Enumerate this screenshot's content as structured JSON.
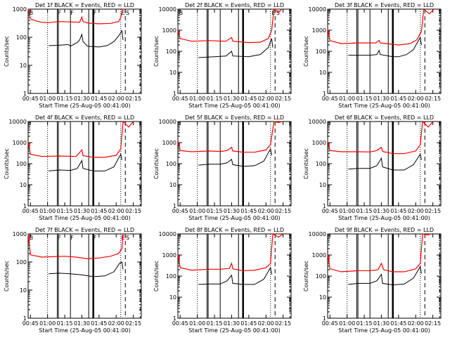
{
  "chart_data": {
    "type": "line",
    "layout": "3x3 grid",
    "xlabel": "Start Time (25-Aug-05 00:41:00)",
    "ylabel": "Counts/sec",
    "xscale_units": "minutes after 00:00",
    "xlim": [
      43,
      142
    ],
    "xticks": [
      45,
      60,
      75,
      90,
      105,
      120,
      135
    ],
    "xtick_labels": [
      "00:45",
      "01:00",
      "01:15",
      "01:30",
      "01:45",
      "02:00",
      "02:15"
    ],
    "yscale": "log",
    "legend": "in title: BLACK = Events, RED = LLD",
    "series_colors": {
      "events": "#000000",
      "lld": "#ff0000"
    },
    "vlines": [
      {
        "t": 60,
        "style": "dotted"
      },
      {
        "t": 68.5,
        "style": "solid"
      },
      {
        "t": 69.5,
        "style": "solid"
      },
      {
        "t": 80,
        "style": "solid"
      },
      {
        "t": 96,
        "style": "solid"
      },
      {
        "t": 100,
        "style": "thick"
      },
      {
        "t": 124,
        "style": "dotted"
      },
      {
        "t": 128,
        "style": "dashed"
      },
      {
        "t": 141,
        "style": "dashdot"
      }
    ],
    "panels": [
      {
        "title": "Det 1f BLACK = Events, RED = LLD",
        "ylim": [
          1,
          1000
        ],
        "yticks": [
          "1",
          "10",
          "100",
          "1000"
        ],
        "markers": [
          {
            "t": 44,
            "label": "B"
          },
          {
            "t": 69,
            "label": "F"
          },
          {
            "t": 80,
            "label": "F"
          },
          {
            "t": 100,
            "label": "F"
          },
          {
            "t": 124.5,
            "label": "E"
          },
          {
            "t": 128.5,
            "label": "S"
          }
        ],
        "lld": [
          [
            43,
            1000
          ],
          [
            45,
            450
          ],
          [
            50,
            380
          ],
          [
            55,
            340
          ],
          [
            60,
            330
          ],
          [
            70,
            360
          ],
          [
            80,
            350
          ],
          [
            88,
            340
          ],
          [
            90,
            520
          ],
          [
            91,
            360
          ],
          [
            95,
            320
          ],
          [
            105,
            300
          ],
          [
            115,
            310
          ],
          [
            122,
            360
          ],
          [
            124,
            500
          ],
          [
            125.5,
            1000
          ]
        ],
        "events": [
          [
            61,
            50
          ],
          [
            70,
            52
          ],
          [
            78,
            55
          ],
          [
            80,
            48
          ],
          [
            86,
            65
          ],
          [
            88,
            80
          ],
          [
            90,
            125
          ],
          [
            91,
            70
          ],
          [
            95,
            48
          ],
          [
            105,
            45
          ],
          [
            112,
            50
          ],
          [
            118,
            70
          ],
          [
            122,
            110
          ],
          [
            125,
            170
          ],
          [
            126,
            80
          ]
        ]
      },
      {
        "title": "Det 2f BLACK = Events, RED = LLD",
        "ylim": [
          1,
          10000
        ],
        "yticks": [
          "1",
          "10",
          "100",
          "1000",
          "10000"
        ],
        "markers": [
          {
            "t": 44,
            "label": "B"
          },
          {
            "t": 125,
            "label": "E"
          },
          {
            "t": 129,
            "label": "S"
          }
        ],
        "lld": [
          [
            43,
            1000
          ],
          [
            45,
            400
          ],
          [
            55,
            300
          ],
          [
            70,
            320
          ],
          [
            85,
            300
          ],
          [
            90,
            450
          ],
          [
            91,
            300
          ],
          [
            105,
            260
          ],
          [
            115,
            270
          ],
          [
            122,
            400
          ],
          [
            125,
            1000
          ],
          [
            127,
            10000
          ],
          [
            131,
            7000
          ],
          [
            134,
            10000
          ]
        ],
        "events": [
          [
            61,
            50
          ],
          [
            75,
            55
          ],
          [
            85,
            60
          ],
          [
            90,
            100
          ],
          [
            91,
            60
          ],
          [
            105,
            55
          ],
          [
            115,
            70
          ],
          [
            122,
            150
          ],
          [
            125,
            400
          ],
          [
            126,
            150
          ]
        ]
      },
      {
        "title": "Det 3f BLACK = Events, RED = LLD",
        "ylim": [
          1,
          10000
        ],
        "yticks": [
          "1",
          "10",
          "100",
          "1000",
          "10000"
        ],
        "markers": [],
        "lld": [
          [
            43,
            1200
          ],
          [
            45,
            320
          ],
          [
            55,
            230
          ],
          [
            70,
            250
          ],
          [
            85,
            250
          ],
          [
            88,
            330
          ],
          [
            89,
            250
          ],
          [
            95,
            230
          ],
          [
            105,
            200
          ],
          [
            115,
            230
          ],
          [
            121,
            350
          ],
          [
            125,
            900
          ],
          [
            127,
            10000
          ],
          [
            132,
            6000
          ],
          [
            136,
            10000
          ]
        ],
        "events": [
          [
            61,
            65
          ],
          [
            70,
            65
          ],
          [
            80,
            65
          ],
          [
            86,
            70
          ],
          [
            88,
            110
          ],
          [
            89,
            70
          ],
          [
            100,
            55
          ],
          [
            105,
            55
          ],
          [
            112,
            70
          ],
          [
            118,
            120
          ],
          [
            122,
            300
          ],
          [
            124,
            450
          ],
          [
            125,
            200
          ]
        ]
      },
      {
        "title": "Det 4f BLACK = Events, RED = LLD",
        "ylim": [
          1,
          10000
        ],
        "yticks": [
          "1",
          "10",
          "100",
          "1000",
          "10000"
        ],
        "markers": [],
        "lld": [
          [
            43,
            1000
          ],
          [
            45,
            280
          ],
          [
            55,
            220
          ],
          [
            70,
            230
          ],
          [
            85,
            220
          ],
          [
            90,
            450
          ],
          [
            91,
            240
          ],
          [
            100,
            200
          ],
          [
            110,
            200
          ],
          [
            120,
            250
          ],
          [
            124,
            500
          ],
          [
            126,
            10000
          ],
          [
            131,
            5500
          ],
          [
            135,
            10000
          ]
        ],
        "events": [
          [
            61,
            45
          ],
          [
            70,
            50
          ],
          [
            80,
            48
          ],
          [
            86,
            60
          ],
          [
            90,
            140
          ],
          [
            91,
            60
          ],
          [
            100,
            45
          ],
          [
            110,
            45
          ],
          [
            118,
            70
          ],
          [
            124,
            280
          ],
          [
            125,
            150
          ]
        ]
      },
      {
        "title": "Det 5f BLACK = Events, RED = LLD",
        "ylim": [
          1,
          10000
        ],
        "yticks": [
          "1",
          "10",
          "100",
          "1000",
          "10000"
        ],
        "markers": [],
        "lld": [
          [
            43,
            1300
          ],
          [
            45,
            420
          ],
          [
            55,
            370
          ],
          [
            70,
            400
          ],
          [
            80,
            380
          ],
          [
            86,
            420
          ],
          [
            90,
            600
          ],
          [
            91,
            400
          ],
          [
            100,
            350
          ],
          [
            110,
            350
          ],
          [
            120,
            450
          ],
          [
            124,
            800
          ],
          [
            127,
            10000
          ],
          [
            131,
            9000
          ],
          [
            134,
            10000
          ]
        ],
        "events": [
          [
            61,
            85
          ],
          [
            70,
            95
          ],
          [
            80,
            95
          ],
          [
            86,
            110
          ],
          [
            90,
            160
          ],
          [
            91,
            90
          ],
          [
            100,
            75
          ],
          [
            110,
            80
          ],
          [
            118,
            130
          ],
          [
            124,
            500
          ],
          [
            125,
            250
          ]
        ]
      },
      {
        "title": "Det 6f BLACK = Events, RED = LLD",
        "ylim": [
          1,
          10000
        ],
        "yticks": [
          "1",
          "10",
          "100",
          "1000",
          "10000"
        ],
        "markers": [],
        "lld": [
          [
            43,
            1200
          ],
          [
            45,
            420
          ],
          [
            55,
            370
          ],
          [
            70,
            370
          ],
          [
            80,
            360
          ],
          [
            86,
            420
          ],
          [
            90,
            600
          ],
          [
            91,
            380
          ],
          [
            100,
            300
          ],
          [
            110,
            300
          ],
          [
            120,
            400
          ],
          [
            124,
            800
          ],
          [
            126,
            10000
          ],
          [
            131,
            5500
          ],
          [
            135,
            10000
          ]
        ],
        "events": [
          [
            61,
            55
          ],
          [
            70,
            60
          ],
          [
            80,
            60
          ],
          [
            86,
            80
          ],
          [
            90,
            180
          ],
          [
            91,
            70
          ],
          [
            100,
            50
          ],
          [
            110,
            50
          ],
          [
            118,
            90
          ],
          [
            124,
            280
          ],
          [
            125,
            150
          ]
        ]
      },
      {
        "title": "Det 7f BLACK = Events, RED = LLD",
        "ylim": [
          1,
          1000
        ],
        "yticks": [
          "1",
          "10",
          "100",
          "1000"
        ],
        "markers": [
          {
            "t": 44,
            "label": "B"
          },
          {
            "t": 69,
            "label": "F"
          },
          {
            "t": 80,
            "label": "F"
          },
          {
            "t": 100,
            "label": "F"
          },
          {
            "t": 124.5,
            "label": "E"
          },
          {
            "t": 128.5,
            "label": "S"
          }
        ],
        "lld": [
          [
            43,
            1000
          ],
          [
            45,
            180
          ],
          [
            55,
            150
          ],
          [
            65,
            155
          ],
          [
            75,
            160
          ],
          [
            85,
            150
          ],
          [
            95,
            130
          ],
          [
            105,
            140
          ],
          [
            115,
            160
          ],
          [
            122,
            200
          ],
          [
            125,
            300
          ],
          [
            126,
            1000
          ]
        ],
        "events": [
          [
            61,
            38
          ],
          [
            70,
            40
          ],
          [
            80,
            38
          ],
          [
            90,
            35
          ],
          [
            100,
            30
          ],
          [
            110,
            32
          ],
          [
            118,
            45
          ],
          [
            123,
            90
          ],
          [
            125,
            100
          ],
          [
            126,
            55
          ]
        ]
      },
      {
        "title": "Det 8f BLACK = Events, RED = LLD",
        "ylim": [
          1,
          10000
        ],
        "yticks": [
          "1",
          "10",
          "100",
          "1000",
          "10000"
        ],
        "markers": [],
        "lld": [
          [
            43,
            1000
          ],
          [
            45,
            250
          ],
          [
            55,
            190
          ],
          [
            70,
            210
          ],
          [
            80,
            210
          ],
          [
            88,
            230
          ],
          [
            90,
            400
          ],
          [
            91,
            220
          ],
          [
            100,
            180
          ],
          [
            110,
            190
          ],
          [
            120,
            250
          ],
          [
            124,
            400
          ],
          [
            126,
            10000
          ],
          [
            131,
            7000
          ],
          [
            135,
            10000
          ]
        ],
        "events": [
          [
            61,
            40
          ],
          [
            70,
            42
          ],
          [
            80,
            42
          ],
          [
            86,
            60
          ],
          [
            90,
            110
          ],
          [
            91,
            45
          ],
          [
            100,
            40
          ],
          [
            110,
            40
          ],
          [
            118,
            70
          ],
          [
            124,
            250
          ],
          [
            125,
            120
          ]
        ]
      },
      {
        "title": "Det 9f BLACK = Events, RED = LLD",
        "ylim": [
          1,
          10000
        ],
        "yticks": [
          "1",
          "10",
          "100",
          "1000",
          "10000"
        ],
        "markers": [],
        "lld": [
          [
            43,
            1000
          ],
          [
            45,
            220
          ],
          [
            55,
            160
          ],
          [
            70,
            180
          ],
          [
            80,
            180
          ],
          [
            87,
            200
          ],
          [
            90,
            400
          ],
          [
            92,
            200
          ],
          [
            100,
            160
          ],
          [
            110,
            160
          ],
          [
            120,
            220
          ],
          [
            124,
            400
          ],
          [
            126,
            10000
          ],
          [
            130,
            9000
          ],
          [
            134,
            10000
          ]
        ],
        "events": [
          [
            61,
            40
          ],
          [
            70,
            45
          ],
          [
            80,
            45
          ],
          [
            86,
            60
          ],
          [
            90,
            120
          ],
          [
            91,
            45
          ],
          [
            100,
            38
          ],
          [
            110,
            42
          ],
          [
            118,
            80
          ],
          [
            124,
            280
          ],
          [
            125,
            130
          ]
        ]
      }
    ]
  }
}
